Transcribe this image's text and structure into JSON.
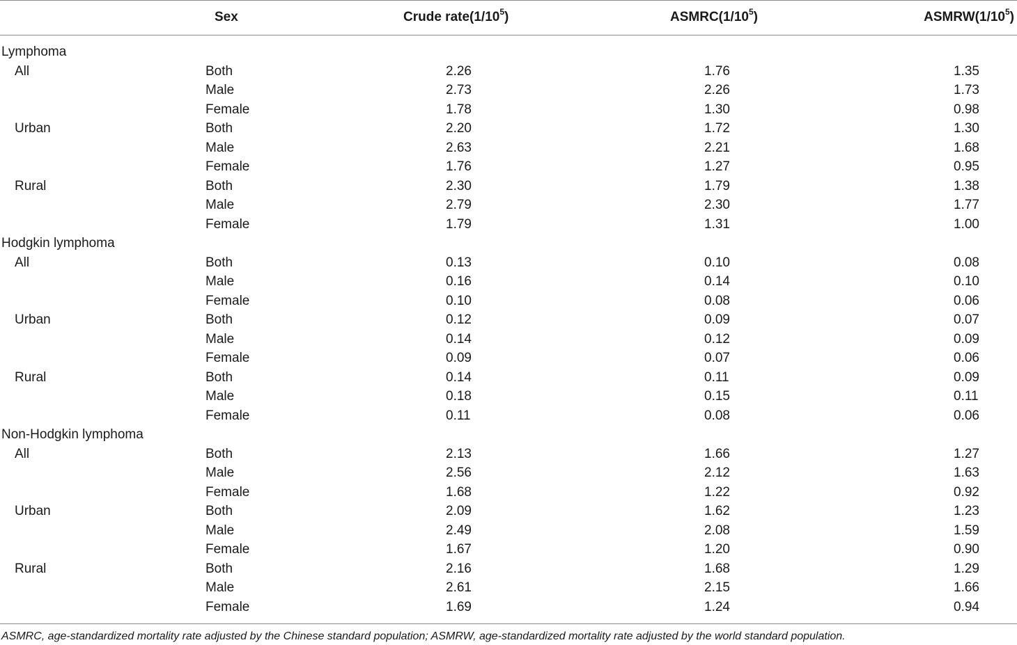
{
  "headers": {
    "col0": "",
    "sex": "Sex",
    "crude": "Crude rate(1/10",
    "asmrc": "ASMRC(1/10",
    "asmrw": "ASMRW(1/10",
    "exp": "5",
    "close": ")"
  },
  "sections": [
    {
      "title": "Lymphoma",
      "groups": [
        {
          "region": "All",
          "rows": [
            {
              "sex": "Both",
              "crude": "2.26",
              "asmrc": "1.76",
              "asmrw": "1.35"
            },
            {
              "sex": "Male",
              "crude": "2.73",
              "asmrc": "2.26",
              "asmrw": "1.73"
            },
            {
              "sex": "Female",
              "crude": "1.78",
              "asmrc": "1.30",
              "asmrw": "0.98"
            }
          ]
        },
        {
          "region": "Urban",
          "rows": [
            {
              "sex": "Both",
              "crude": "2.20",
              "asmrc": "1.72",
              "asmrw": "1.30"
            },
            {
              "sex": "Male",
              "crude": "2.63",
              "asmrc": "2.21",
              "asmrw": "1.68"
            },
            {
              "sex": "Female",
              "crude": "1.76",
              "asmrc": "1.27",
              "asmrw": "0.95"
            }
          ]
        },
        {
          "region": "Rural",
          "rows": [
            {
              "sex": "Both",
              "crude": "2.30",
              "asmrc": "1.79",
              "asmrw": "1.38"
            },
            {
              "sex": "Male",
              "crude": "2.79",
              "asmrc": "2.30",
              "asmrw": "1.77"
            },
            {
              "sex": "Female",
              "crude": "1.79",
              "asmrc": "1.31",
              "asmrw": "1.00"
            }
          ]
        }
      ]
    },
    {
      "title": "Hodgkin lymphoma",
      "groups": [
        {
          "region": "All",
          "rows": [
            {
              "sex": "Both",
              "crude": "0.13",
              "asmrc": "0.10",
              "asmrw": "0.08"
            },
            {
              "sex": "Male",
              "crude": "0.16",
              "asmrc": "0.14",
              "asmrw": "0.10"
            },
            {
              "sex": "Female",
              "crude": "0.10",
              "asmrc": "0.08",
              "asmrw": "0.06"
            }
          ]
        },
        {
          "region": "Urban",
          "rows": [
            {
              "sex": "Both",
              "crude": "0.12",
              "asmrc": "0.09",
              "asmrw": "0.07"
            },
            {
              "sex": "Male",
              "crude": "0.14",
              "asmrc": "0.12",
              "asmrw": "0.09"
            },
            {
              "sex": "Female",
              "crude": "0.09",
              "asmrc": "0.07",
              "asmrw": "0.06"
            }
          ]
        },
        {
          "region": "Rural",
          "rows": [
            {
              "sex": "Both",
              "crude": "0.14",
              "asmrc": "0.11",
              "asmrw": "0.09"
            },
            {
              "sex": "Male",
              "crude": "0.18",
              "asmrc": "0.15",
              "asmrw": "0.11"
            },
            {
              "sex": "Female",
              "crude": "0.11",
              "asmrc": "0.08",
              "asmrw": "0.06"
            }
          ]
        }
      ]
    },
    {
      "title": "Non-Hodgkin lymphoma",
      "groups": [
        {
          "region": "All",
          "rows": [
            {
              "sex": "Both",
              "crude": "2.13",
              "asmrc": "1.66",
              "asmrw": "1.27"
            },
            {
              "sex": "Male",
              "crude": "2.56",
              "asmrc": "2.12",
              "asmrw": "1.63"
            },
            {
              "sex": "Female",
              "crude": "1.68",
              "asmrc": "1.22",
              "asmrw": "0.92"
            }
          ]
        },
        {
          "region": "Urban",
          "rows": [
            {
              "sex": "Both",
              "crude": "2.09",
              "asmrc": "1.62",
              "asmrw": "1.23"
            },
            {
              "sex": "Male",
              "crude": "2.49",
              "asmrc": "2.08",
              "asmrw": "1.59"
            },
            {
              "sex": "Female",
              "crude": "1.67",
              "asmrc": "1.20",
              "asmrw": "0.90"
            }
          ]
        },
        {
          "region": "Rural",
          "rows": [
            {
              "sex": "Both",
              "crude": "2.16",
              "asmrc": "1.68",
              "asmrw": "1.29"
            },
            {
              "sex": "Male",
              "crude": "2.61",
              "asmrc": "2.15",
              "asmrw": "1.66"
            },
            {
              "sex": "Female",
              "crude": "1.69",
              "asmrc": "1.24",
              "asmrw": "0.94"
            }
          ]
        }
      ]
    }
  ],
  "footnote": "ASMRC, age-standardized mortality rate adjusted by the Chinese standard population; ASMRW, age-standardized mortality rate adjusted by the world standard population."
}
